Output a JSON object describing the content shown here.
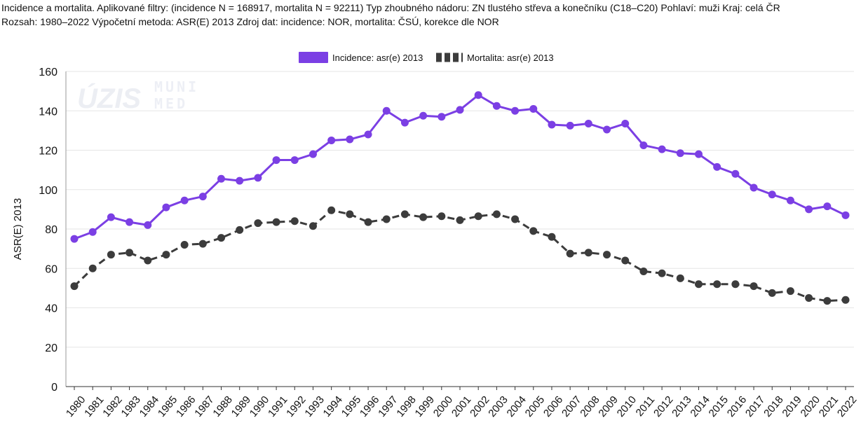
{
  "header": {
    "line1": "Incidence a mortalita. Aplikované filtry: (incidence N = 168917, mortalita N = 92211) Typ zhoubného nádoru: ZN tlustého střeva a konečníku (C18–C20) Pohlaví: muži Kraj: celá ČR",
    "line2": "Rozsah: 1980–2022 Výpočetní metoda: ASR(E) 2013 Zdroj dat: incidence: NOR, mortalita: ČSÚ, korekce dle NOR"
  },
  "watermark": {
    "logo1": "ÚZIS",
    "logo2_line1": "MUNI",
    "logo2_line2": "MED"
  },
  "chart_data": {
    "type": "line",
    "ylabel": "ASR(E) 2013",
    "xlabel": "",
    "ylim": [
      0,
      160
    ],
    "yticks": [
      0,
      20,
      40,
      60,
      80,
      100,
      120,
      140,
      160
    ],
    "grid": "horizontal",
    "legend_position": "top-center",
    "categories": [
      "1980",
      "1981",
      "1982",
      "1983",
      "1984",
      "1985",
      "1986",
      "1987",
      "1988",
      "1989",
      "1990",
      "1991",
      "1992",
      "1993",
      "1994",
      "1995",
      "1996",
      "1997",
      "1998",
      "1999",
      "2000",
      "2001",
      "2002",
      "2003",
      "2004",
      "2005",
      "2006",
      "2007",
      "2008",
      "2009",
      "2010",
      "2011",
      "2012",
      "2013",
      "2014",
      "2015",
      "2016",
      "2017",
      "2018",
      "2019",
      "2020",
      "2021",
      "2022"
    ],
    "series": [
      {
        "name": "Incidence: asr(e) 2013",
        "color": "#7b3fe4",
        "style": "solid",
        "values": [
          75,
          78.5,
          86,
          83.5,
          82,
          91,
          94.5,
          96.5,
          105.5,
          104.5,
          106,
          115,
          115,
          118,
          125,
          125.5,
          128,
          140,
          134,
          137.5,
          137,
          140.5,
          148,
          142.5,
          140,
          141,
          133,
          132.5,
          133.5,
          130.5,
          133.5,
          122.5,
          120.5,
          118.5,
          118,
          111.5,
          108,
          101,
          97.5,
          94.5,
          90,
          91.5,
          87
        ]
      },
      {
        "name": "Mortalita: asr(e) 2013",
        "color": "#3c3c3c",
        "style": "dashed",
        "values": [
          51,
          60,
          67,
          68,
          64,
          67,
          72,
          72.5,
          75.5,
          79.5,
          83,
          83.5,
          84,
          81.5,
          89.5,
          87.5,
          83.5,
          85,
          87.5,
          86,
          86.5,
          84.5,
          86.5,
          87.5,
          85,
          79,
          76,
          67.5,
          68,
          67,
          64,
          58.5,
          57.5,
          55,
          52,
          52,
          52,
          51,
          47.5,
          48.5,
          45,
          43.5,
          44
        ]
      }
    ]
  }
}
